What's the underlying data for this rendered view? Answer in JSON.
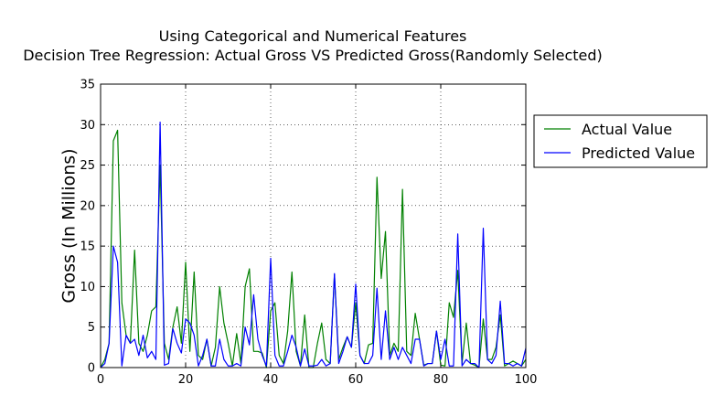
{
  "chart_data": {
    "type": "line",
    "title_line1": "Using Categorical and Numerical Features",
    "title_line2": "Decision Tree Regression: Actual Gross VS Predicted Gross(Randomly Selected)",
    "xlabel": "",
    "ylabel": "Gross (In Millions)",
    "xlim": [
      0,
      100
    ],
    "ylim": [
      0,
      35
    ],
    "xticks": [
      "0",
      "20",
      "40",
      "60",
      "80",
      "100"
    ],
    "yticks": [
      "0",
      "5",
      "10",
      "15",
      "20",
      "25",
      "30",
      "35"
    ],
    "grid": true,
    "legend_position": "outside-right",
    "series": [
      {
        "name": "Actual Value",
        "color": "#008000",
        "values": [
          0.0,
          1.0,
          3.0,
          28.0,
          29.3,
          8.0,
          4.0,
          3.0,
          14.5,
          3.0,
          2.0,
          4.0,
          7.0,
          7.5,
          25.0,
          3.0,
          1.0,
          5.0,
          7.5,
          3.0,
          13.0,
          2.0,
          11.8,
          1.5,
          1.0,
          3.5,
          0.2,
          2.5,
          10.0,
          5.5,
          3.0,
          0.2,
          4.2,
          0.5,
          10.0,
          12.2,
          2.0,
          2.0,
          1.8,
          0.0,
          7.0,
          8.0,
          1.5,
          0.5,
          4.5,
          11.8,
          2.0,
          0.2,
          6.5,
          0.0,
          0.0,
          3.0,
          5.5,
          1.0,
          0.5,
          11.5,
          1.0,
          2.5,
          3.8,
          2.5,
          8.0,
          1.5,
          0.5,
          2.8,
          3.0,
          23.5,
          11.0,
          16.8,
          1.5,
          3.0,
          2.0,
          22.0,
          2.0,
          1.5,
          6.7,
          3.5,
          0.3,
          0.5,
          0.5,
          4.5,
          0.3,
          0.2,
          8.0,
          6.2,
          12.0,
          0.5,
          5.5,
          0.5,
          0.3,
          0.0,
          6.0,
          1.0,
          1.0,
          2.5,
          6.5,
          0.2,
          0.5,
          0.8,
          0.5,
          0.2,
          1.0
        ],
        "name_label": "Actual Value"
      },
      {
        "name": "Predicted Value",
        "color": "#0000ff",
        "values": [
          0.0,
          0.5,
          3.0,
          15.0,
          13.0,
          0.2,
          4.0,
          3.0,
          3.5,
          1.5,
          4.0,
          1.2,
          2.0,
          1.0,
          30.3,
          0.3,
          0.5,
          4.8,
          3.0,
          1.8,
          6.0,
          5.5,
          4.0,
          0.2,
          1.5,
          3.5,
          0.2,
          0.2,
          3.5,
          1.0,
          0.2,
          0.2,
          0.5,
          0.2,
          5.0,
          2.8,
          9.0,
          3.5,
          1.5,
          0.2,
          13.5,
          1.5,
          0.2,
          0.2,
          2.0,
          4.0,
          2.5,
          0.2,
          2.3,
          0.2,
          0.2,
          0.3,
          1.0,
          0.2,
          0.5,
          11.6,
          0.5,
          2.0,
          3.8,
          2.5,
          10.3,
          1.5,
          0.5,
          0.5,
          1.5,
          9.8,
          1.0,
          7.0,
          1.0,
          2.5,
          1.0,
          2.5,
          1.5,
          0.5,
          3.5,
          3.5,
          0.2,
          0.5,
          0.5,
          4.5,
          1.0,
          3.5,
          0.2,
          0.2,
          16.5,
          0.2,
          1.0,
          0.5,
          0.5,
          0.0,
          17.2,
          1.0,
          0.5,
          1.5,
          8.2,
          0.5,
          0.5,
          0.2,
          0.5,
          0.2,
          2.4
        ],
        "name_label": "Predicted Value"
      }
    ]
  }
}
